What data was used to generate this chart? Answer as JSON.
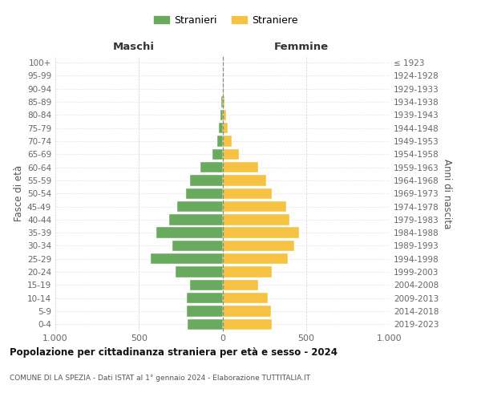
{
  "age_groups": [
    "0-4",
    "5-9",
    "10-14",
    "15-19",
    "20-24",
    "25-29",
    "30-34",
    "35-39",
    "40-44",
    "45-49",
    "50-54",
    "55-59",
    "60-64",
    "65-69",
    "70-74",
    "75-79",
    "80-84",
    "85-89",
    "90-94",
    "95-99",
    "100+"
  ],
  "birth_years": [
    "2019-2023",
    "2014-2018",
    "2009-2013",
    "2004-2008",
    "1999-2003",
    "1994-1998",
    "1989-1993",
    "1984-1988",
    "1979-1983",
    "1974-1978",
    "1969-1973",
    "1964-1968",
    "1959-1963",
    "1954-1958",
    "1949-1953",
    "1944-1948",
    "1939-1943",
    "1934-1938",
    "1929-1933",
    "1924-1928",
    "≤ 1923"
  ],
  "maschi": [
    210,
    215,
    215,
    195,
    280,
    430,
    300,
    395,
    320,
    270,
    220,
    195,
    130,
    60,
    30,
    20,
    10,
    5,
    0,
    0,
    0
  ],
  "femmine": [
    295,
    290,
    270,
    215,
    295,
    390,
    430,
    460,
    400,
    380,
    295,
    260,
    215,
    100,
    55,
    30,
    20,
    10,
    5,
    0,
    0
  ],
  "male_color": "#6aaa5e",
  "female_color": "#f5c242",
  "grid_color": "#cccccc",
  "center_line_color": "#888888",
  "title": "Popolazione per cittadinanza straniera per età e sesso - 2024",
  "subtitle": "COMUNE DI LA SPEZIA - Dati ISTAT al 1° gennaio 2024 - Elaborazione TUTTITALIA.IT",
  "legend_maschi": "Stranieri",
  "legend_femmine": "Straniere",
  "header_left": "Maschi",
  "header_right": "Femmine",
  "ylabel_left": "Fasce di età",
  "ylabel_right": "Anni di nascita",
  "xlim": 1000
}
